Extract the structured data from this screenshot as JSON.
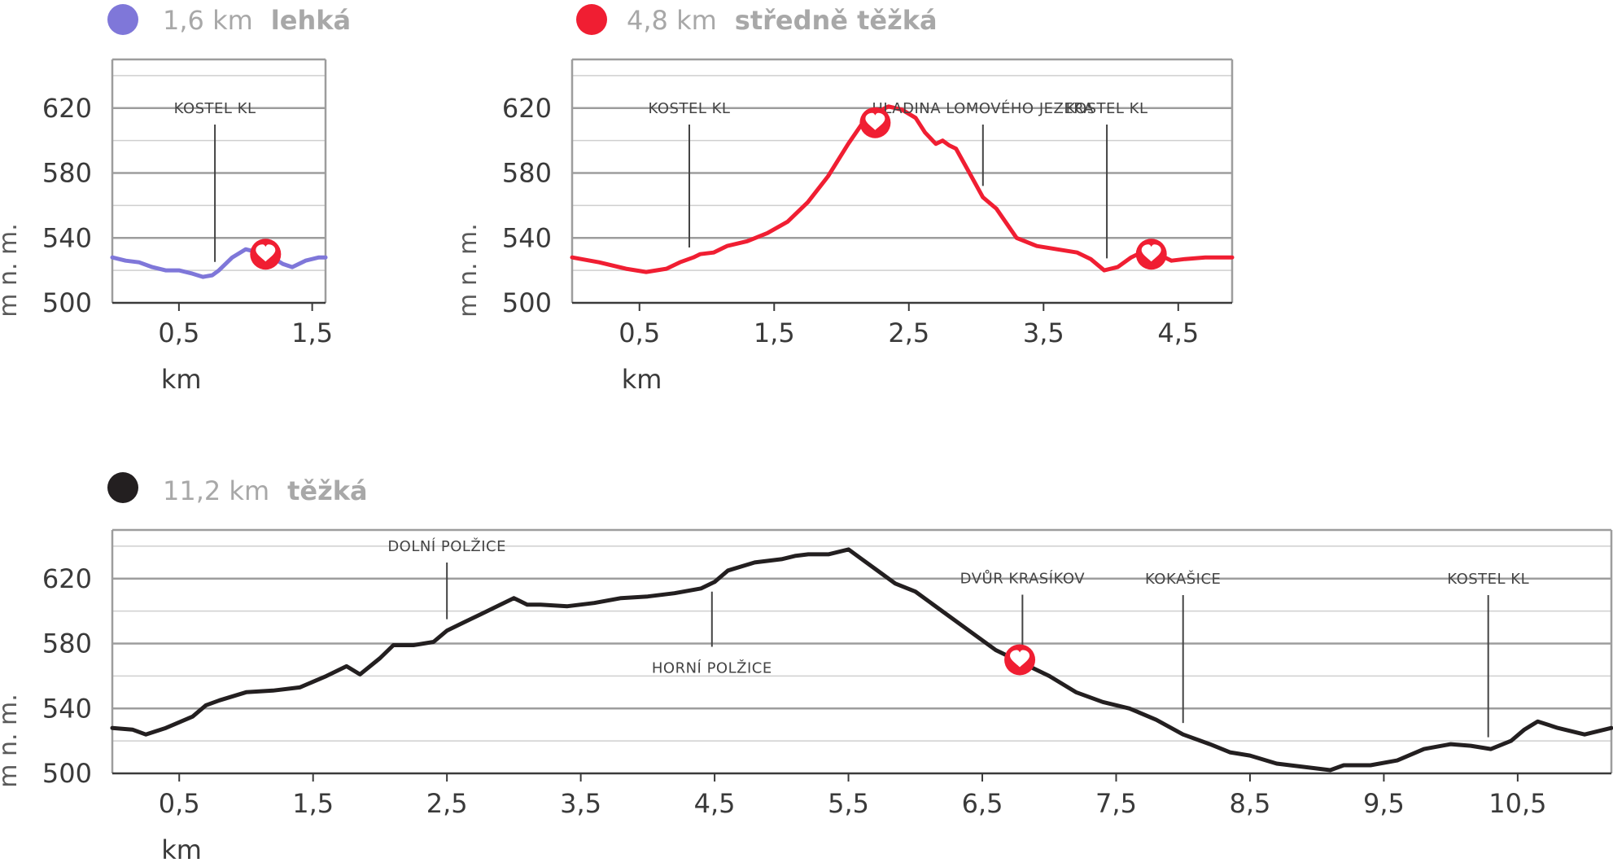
{
  "chart_data": [
    {
      "type": "line",
      "header": {
        "distance": "1,6 km",
        "difficulty": "lehká"
      },
      "color": "#7f77d9",
      "xlabel": "km",
      "ylabel": "m n. m.",
      "x_ticks": [
        "0,5",
        "1,5"
      ],
      "y_ticks": [
        "620",
        "580",
        "540",
        "500"
      ],
      "xlim": [
        0,
        1.6
      ],
      "ylim": [
        500,
        650
      ],
      "x": [
        0,
        0.1,
        0.2,
        0.3,
        0.4,
        0.5,
        0.6,
        0.68,
        0.75,
        0.8,
        0.9,
        1.0,
        1.05,
        1.1,
        1.15,
        1.2,
        1.28,
        1.35,
        1.45,
        1.55,
        1.6
      ],
      "y": [
        528,
        526,
        525,
        522,
        520,
        520,
        518,
        516,
        517,
        520,
        528,
        533,
        532,
        530,
        531,
        528,
        524,
        522,
        526,
        528,
        528
      ],
      "annotations": [
        {
          "label": "KOSTEL KL",
          "x": 0.77,
          "position": "above"
        }
      ],
      "markers": [
        {
          "name": "heart",
          "x": 1.15,
          "y": 530
        }
      ]
    },
    {
      "type": "line",
      "header": {
        "distance": "4,8 km",
        "difficulty": "středně těžká"
      },
      "color": "#f01e32",
      "xlabel": "km",
      "ylabel": "m n. m.",
      "x_ticks": [
        "0,5",
        "1,5",
        "2,5",
        "3,5",
        "4,5"
      ],
      "y_ticks": [
        "620",
        "580",
        "540",
        "500"
      ],
      "xlim": [
        0,
        4.9
      ],
      "ylim": [
        500,
        650
      ],
      "x": [
        0,
        0.2,
        0.4,
        0.55,
        0.7,
        0.8,
        0.9,
        0.95,
        1.05,
        1.15,
        1.3,
        1.45,
        1.6,
        1.75,
        1.9,
        2.05,
        2.15,
        2.25,
        2.35,
        2.45,
        2.55,
        2.62,
        2.7,
        2.75,
        2.8,
        2.85,
        2.95,
        3.05,
        3.15,
        3.3,
        3.45,
        3.6,
        3.75,
        3.85,
        3.95,
        4.05,
        4.15,
        4.25,
        4.35,
        4.45,
        4.55,
        4.7,
        4.9
      ],
      "y": [
        528,
        525,
        521,
        519,
        521,
        525,
        528,
        530,
        531,
        535,
        538,
        543,
        550,
        562,
        578,
        598,
        610,
        617,
        621,
        619,
        614,
        605,
        598,
        600,
        597,
        595,
        580,
        565,
        558,
        540,
        535,
        533,
        531,
        527,
        520,
        522,
        528,
        532,
        530,
        526,
        527,
        528,
        528
      ],
      "annotations": [
        {
          "label": "KOSTEL KL",
          "x": 0.87,
          "position": "above"
        },
        {
          "label": "HLADINA LOMOVÉHO JEZERA",
          "x": 3.05,
          "position": "above"
        },
        {
          "label": "KOSTEL KL",
          "x": 3.97,
          "position": "above"
        }
      ],
      "markers": [
        {
          "name": "heart",
          "x": 2.25,
          "y": 611
        },
        {
          "name": "heart",
          "x": 4.3,
          "y": 530
        }
      ]
    },
    {
      "type": "line",
      "header": {
        "distance": "11,2 km",
        "difficulty": "těžká"
      },
      "color": "#231f20",
      "xlabel": "km",
      "ylabel": "m n. m.",
      "x_ticks": [
        "0,5",
        "1,5",
        "2,5",
        "3,5",
        "4,5",
        "5,5",
        "6,5",
        "7,5",
        "8,5",
        "9,5",
        "10,5"
      ],
      "y_ticks": [
        "620",
        "580",
        "540",
        "500"
      ],
      "xlim": [
        0,
        11.2
      ],
      "ylim": [
        500,
        650
      ],
      "x": [
        0,
        0.15,
        0.25,
        0.4,
        0.6,
        0.7,
        0.8,
        1.0,
        1.2,
        1.4,
        1.6,
        1.75,
        1.85,
        2.0,
        2.1,
        2.25,
        2.4,
        2.5,
        2.6,
        2.75,
        2.9,
        3.0,
        3.1,
        3.2,
        3.4,
        3.6,
        3.8,
        4.0,
        4.2,
        4.4,
        4.5,
        4.6,
        4.8,
        5.0,
        5.1,
        5.2,
        5.35,
        5.5,
        5.6,
        5.7,
        5.85,
        6.0,
        6.2,
        6.4,
        6.6,
        6.8,
        7.0,
        7.2,
        7.4,
        7.6,
        7.8,
        8.0,
        8.2,
        8.35,
        8.5,
        8.7,
        8.9,
        9.1,
        9.2,
        9.4,
        9.6,
        9.8,
        10.0,
        10.15,
        10.3,
        10.45,
        10.55,
        10.65,
        10.8,
        11.0,
        11.2
      ],
      "y": [
        528,
        527,
        524,
        528,
        535,
        542,
        545,
        550,
        551,
        553,
        560,
        566,
        561,
        571,
        579,
        579,
        581,
        588,
        592,
        598,
        604,
        608,
        604,
        604,
        603,
        605,
        608,
        609,
        611,
        614,
        618,
        625,
        630,
        632,
        634,
        635,
        635,
        638,
        632,
        626,
        617,
        612,
        600,
        588,
        576,
        568,
        560,
        550,
        544,
        540,
        533,
        524,
        518,
        513,
        511,
        506,
        504,
        502,
        505,
        505,
        508,
        515,
        518,
        517,
        515,
        520,
        527,
        532,
        528,
        524,
        528
      ],
      "annotations": [
        {
          "label": "DOLNÍ POLŽICE",
          "x": 2.5,
          "position": "above"
        },
        {
          "label": "HORNÍ POLŽICE",
          "x": 4.48,
          "position": "below"
        },
        {
          "label": "DVŮR KRASÍKOV",
          "x": 6.8,
          "position": "above"
        },
        {
          "label": "KOKAŠICE",
          "x": 8.0,
          "position": "above"
        },
        {
          "label": "KOSTEL KL",
          "x": 10.28,
          "position": "above"
        }
      ],
      "markers": [
        {
          "name": "heart",
          "x": 6.78,
          "y": 570
        }
      ]
    }
  ]
}
